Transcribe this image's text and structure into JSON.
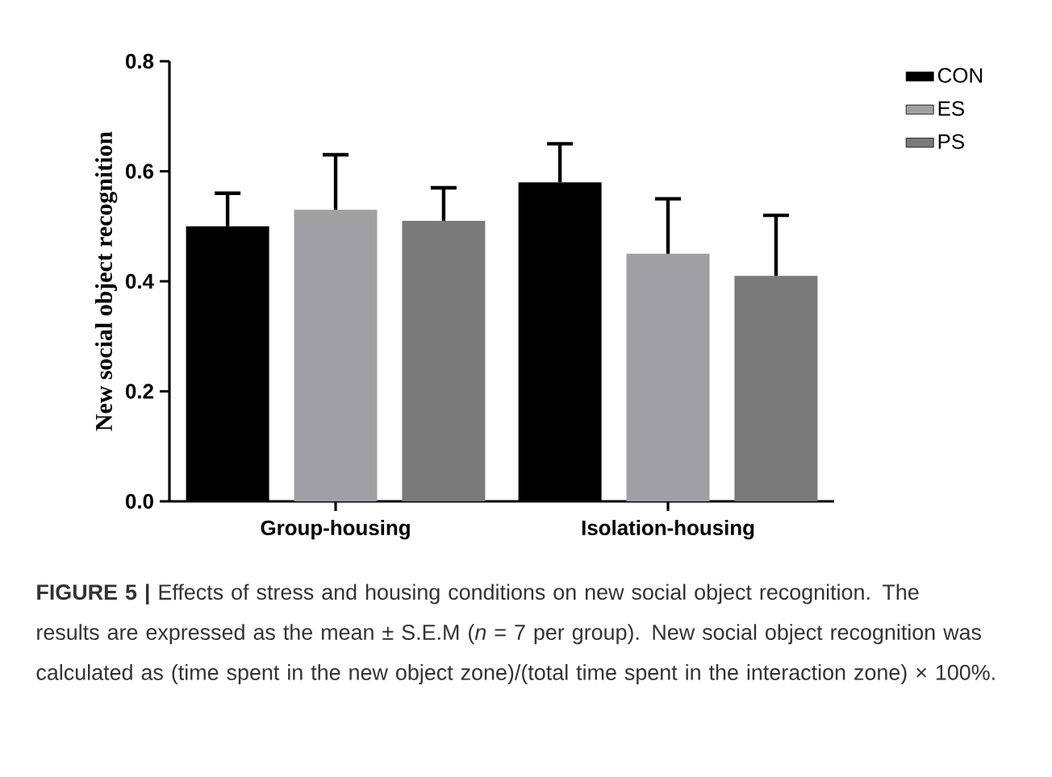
{
  "chart_data": {
    "type": "bar",
    "ylabel": "New social object recognition",
    "categories": [
      "Group-housing",
      "Isolation-housing"
    ],
    "series": [
      {
        "name": "CON",
        "color": "#000000",
        "values": [
          0.5,
          0.58
        ],
        "errors": [
          [
            0.5,
            0.56
          ],
          [
            0.58,
            0.65
          ]
        ]
      },
      {
        "name": "ES",
        "color": "#a0a0a4",
        "values": [
          0.53,
          0.45
        ],
        "errors": [
          [
            0.53,
            0.63
          ],
          [
            0.45,
            0.55
          ]
        ]
      },
      {
        "name": "PS",
        "color": "#7a7a7a",
        "values": [
          0.51,
          0.41
        ],
        "errors": [
          [
            0.51,
            0.57
          ],
          [
            0.41,
            0.52
          ]
        ]
      }
    ],
    "ylim": [
      0,
      0.8
    ],
    "yticks": [
      {
        "value": 0,
        "label": "0.0"
      },
      {
        "value": 0.2,
        "label": "0.2"
      },
      {
        "value": 0.4,
        "label": "0.4"
      },
      {
        "value": 0.6,
        "label": "0.6"
      },
      {
        "value": 0.8,
        "label": "0.8"
      }
    ],
    "legend": "top right",
    "annotations": [
      "**FIGURE 5 |** Effects of stress and housing conditions on new social object recognition. The results are expressed as the mean ± S.E.M (*n* = 7 per group). New social object recognition was calculated as (time spent in the new object zone)/(total time spent in the interaction zone) × 100%."
    ]
  }
}
